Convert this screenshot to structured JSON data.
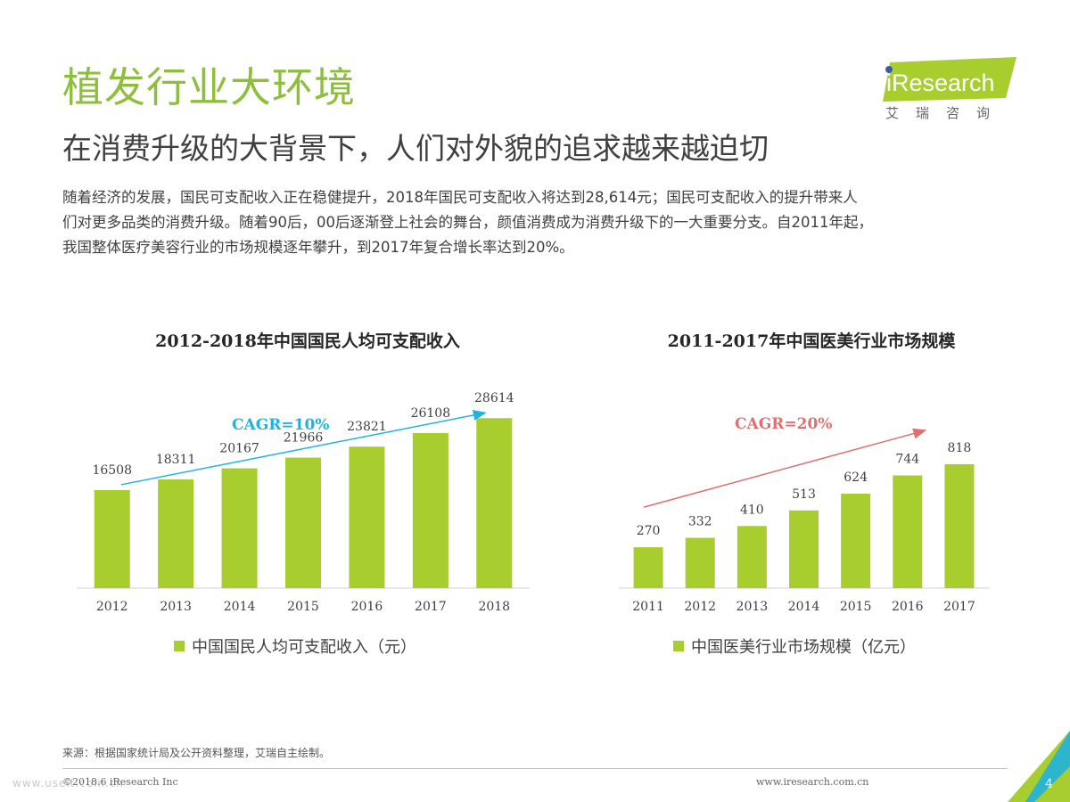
{
  "header": {
    "title": "植发行业大环境",
    "subtitle": "在消费升级的大背景下，人们对外貌的追求越来越迫切",
    "paragraph_lines": [
      "随着经济的发展，国民可支配收入正在稳健提升，2018年国民可支配收入将达到28,614元；国民可支配收入的提升带来人",
      "们对更多品类的消费升级。随着90后，00后逐渐登上社会的舞台，颜值消费成为消费升级下的一大重要分支。自2011年起，",
      "我国整体医疗美容行业的市场规模逐年攀升，到2017年复合增长率达到20%。"
    ]
  },
  "logo": {
    "brand": "iResearch",
    "cn": "艾瑞咨询"
  },
  "colors": {
    "accent": "#8dbf3c",
    "bar": "#a8cd2f",
    "cagr1": "#1fb3e0",
    "cagr2": "#e07070"
  },
  "chart_data": [
    {
      "type": "bar",
      "title": "2012-2018年中国国民人均可支配收入",
      "categories": [
        "2012",
        "2013",
        "2014",
        "2015",
        "2016",
        "2017",
        "2018"
      ],
      "values": [
        16508,
        18311,
        20167,
        21966,
        23821,
        26108,
        28614
      ],
      "legend": "中国国民人均可支配收入（元）",
      "annotation": "CAGR=10%",
      "ylim": [
        0,
        30000
      ]
    },
    {
      "type": "bar",
      "title": "2011-2017年中国医美行业市场规模",
      "categories": [
        "2011",
        "2012",
        "2013",
        "2014",
        "2015",
        "2016",
        "2017"
      ],
      "values": [
        270,
        332,
        410,
        513,
        624,
        744,
        818
      ],
      "legend": "中国医美行业市场规模（亿元）",
      "annotation": "CAGR=20%",
      "ylim": [
        0,
        1000
      ]
    }
  ],
  "footer": {
    "source": "来源：根据国家统计局及公开资料整理，艾瑞自主绘制。",
    "copyright": "©2018.6 iResearch Inc",
    "url": "www.iresearch.com.cn",
    "page": "4",
    "watermark": "www.useit.com.cn"
  }
}
